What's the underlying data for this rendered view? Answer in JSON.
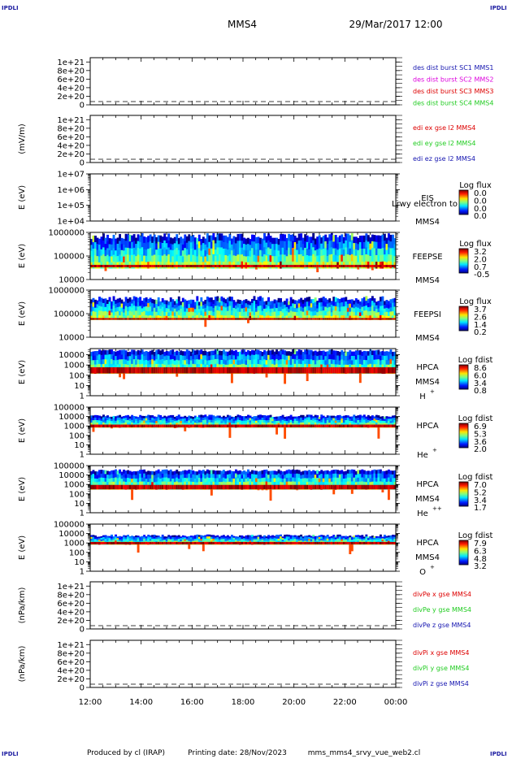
{
  "header": {
    "spacecraft": "MMS4",
    "datetime": "29/Mar/2017 12:00",
    "corner_label": "IPDLI"
  },
  "footer": {
    "produced_by": "Produced by cl (IRAP)",
    "printing_date": "Printing date: 28/Nov/2023",
    "script_name": "mms_mms4_srvy_vue_web2.cl"
  },
  "time_axis": {
    "tick_labels": [
      "12:00",
      "14:00",
      "16:00",
      "18:00",
      "20:00",
      "22:00",
      "00:00"
    ],
    "range_hours": [
      12,
      24
    ]
  },
  "colors": {
    "red": "#dd0000",
    "green": "#22cc22",
    "blue": "#1515b0",
    "magenta": "#dd00dd",
    "axis": "#000000"
  },
  "chart_data": [
    {
      "id": "des-dist",
      "type": "line",
      "ylabel": "",
      "ytick_labels": [
        "1e+21",
        "8e+20",
        "6e+20",
        "4e+20",
        "2e+20",
        "0"
      ],
      "ylim": [
        0,
        1.1e+21
      ],
      "zero_line": true,
      "legend": [
        {
          "text": "des dist burst SC1 MMS1",
          "color": "#1515b0"
        },
        {
          "text": "des dist burst SC2 MMS2",
          "color": "#dd00dd"
        },
        {
          "text": "des dist burst SC3 MMS3",
          "color": "#dd0000"
        },
        {
          "text": "des dist burst SC4 MMS4",
          "color": "#22cc22"
        }
      ]
    },
    {
      "id": "edi-e",
      "type": "line",
      "ylabel": "(mV/m)",
      "ytick_labels": [
        "1e+21",
        "8e+20",
        "6e+20",
        "4e+20",
        "2e+20",
        "0"
      ],
      "ylim": [
        0,
        1.1e+21
      ],
      "zero_line": true,
      "legend": [
        {
          "text": "edi ex gse l2 MMS4",
          "color": "#dd0000"
        },
        {
          "text": "edi ey gse l2 MMS4",
          "color": "#22cc22"
        },
        {
          "text": "edi ez gse l2 MMS4",
          "color": "#1515b0"
        }
      ]
    },
    {
      "id": "eis",
      "type": "heatmap",
      "ylabel": "E (eV)",
      "ytick_labels": [
        "1e+07",
        "1e+06",
        "1e+05",
        "1e+04"
      ],
      "ylim": [
        10000,
        10000000
      ],
      "log_y": true,
      "instrument": "EIS",
      "spacecraft": "MMS4",
      "overlay_text": "Lrwy electron to",
      "colorbar_title": "Log flux",
      "colorbar_labels": [
        "0.0",
        "0.0",
        "0.0",
        "0.0"
      ],
      "band": null
    },
    {
      "id": "feepse",
      "type": "heatmap",
      "ylabel": "E (eV)",
      "ytick_labels": [
        "1000000",
        "100000",
        "10000"
      ],
      "ylim": [
        10000,
        1000000
      ],
      "log_y": true,
      "instrument": "FEEPSE",
      "spacecraft": "MMS4",
      "colorbar_title": "Log flux",
      "colorbar_labels": [
        "3.2",
        "2.0",
        "0.7",
        "-0.5"
      ],
      "band": {
        "low": 30000,
        "high": 700000,
        "floor_low": 33000,
        "floor_high": 42000
      }
    },
    {
      "id": "feepsi",
      "type": "heatmap",
      "ylabel": "E (eV)",
      "ytick_labels": [
        "1000000",
        "100000",
        "10000"
      ],
      "ylim": [
        10000,
        1000000
      ],
      "log_y": true,
      "instrument": "FEEPSI",
      "spacecraft": "MMS4",
      "colorbar_title": "Log flux",
      "colorbar_labels": [
        "3.7",
        "2.6",
        "1.4",
        "0.2"
      ],
      "band": {
        "low": 55000,
        "high": 420000,
        "floor_low": 55000,
        "floor_high": 65000
      }
    },
    {
      "id": "hpca-h",
      "type": "heatmap",
      "ylabel": "E (eV)",
      "ytick_labels": [
        "10000",
        "1000",
        "100",
        "10",
        "1"
      ],
      "ylim": [
        1,
        40000
      ],
      "log_y": true,
      "instrument": "HPCA",
      "spacecraft": "MMS4",
      "species": "H",
      "species_charge": "+",
      "colorbar_title": "Log fdist",
      "colorbar_labels": [
        "8.6",
        "6.0",
        "3.4",
        "0.8"
      ],
      "band": {
        "low": 150,
        "high": 25000,
        "floor_low": 150,
        "floor_high": 600
      }
    },
    {
      "id": "hpca-he",
      "type": "heatmap",
      "ylabel": "E (eV)",
      "ytick_labels": [
        "100000",
        "10000",
        "1000",
        "100",
        "10",
        "1"
      ],
      "ylim": [
        1,
        100000
      ],
      "log_y": true,
      "instrument": "HPCA",
      "spacecraft": "",
      "species": "He",
      "species_charge": "+",
      "colorbar_title": "Log fdist",
      "colorbar_labels": [
        "6.9",
        "5.3",
        "3.6",
        "2.0"
      ],
      "band": {
        "low": 700,
        "high": 12000,
        "floor_low": 700,
        "floor_high": 1400
      }
    },
    {
      "id": "hpca-he2",
      "type": "heatmap",
      "ylabel": "E (eV)",
      "ytick_labels": [
        "100000",
        "10000",
        "1000",
        "100",
        "10",
        "1"
      ],
      "ylim": [
        1,
        100000
      ],
      "log_y": true,
      "instrument": "HPCA",
      "spacecraft": "MMS4",
      "species": "He",
      "species_charge": "++",
      "colorbar_title": "Log fdist",
      "colorbar_labels": [
        "7.0",
        "5.2",
        "3.4",
        "1.7"
      ],
      "band": {
        "low": 300,
        "high": 30000,
        "floor_low": 300,
        "floor_high": 900
      }
    },
    {
      "id": "hpca-o",
      "type": "heatmap",
      "ylabel": "E (eV)",
      "ytick_labels": [
        "100000",
        "10000",
        "1000",
        "100",
        "10",
        "1"
      ],
      "ylim": [
        1,
        100000
      ],
      "log_y": true,
      "instrument": "HPCA",
      "spacecraft": "MMS4",
      "species": "O",
      "species_charge": "+",
      "colorbar_title": "Log fdist",
      "colorbar_labels": [
        "7.9",
        "6.3",
        "4.8",
        "3.2"
      ],
      "band": {
        "low": 700,
        "high": 6000,
        "floor_low": 700,
        "floor_high": 1300
      }
    },
    {
      "id": "divpe",
      "type": "line",
      "ylabel": "(nPa/km)",
      "ytick_labels": [
        "1e+21",
        "8e+20",
        "6e+20",
        "4e+20",
        "2e+20",
        "0"
      ],
      "ylim": [
        0,
        1.1e+21
      ],
      "zero_line": true,
      "legend": [
        {
          "text": "divPe x gse MMS4",
          "color": "#dd0000"
        },
        {
          "text": "divPe y gse MMS4",
          "color": "#22cc22"
        },
        {
          "text": "divPe z gse MMS4",
          "color": "#1515b0"
        }
      ]
    },
    {
      "id": "divpi",
      "type": "line",
      "ylabel": "(nPa/km)",
      "ytick_labels": [
        "1e+21",
        "8e+20",
        "6e+20",
        "4e+20",
        "2e+20",
        "0"
      ],
      "ylim": [
        0,
        1.1e+21
      ],
      "zero_line": true,
      "legend": [
        {
          "text": "divPi x gse MMS4",
          "color": "#dd0000"
        },
        {
          "text": "divPi y gse MMS4",
          "color": "#22cc22"
        },
        {
          "text": "divPi z gse MMS4",
          "color": "#1515b0"
        }
      ]
    }
  ]
}
